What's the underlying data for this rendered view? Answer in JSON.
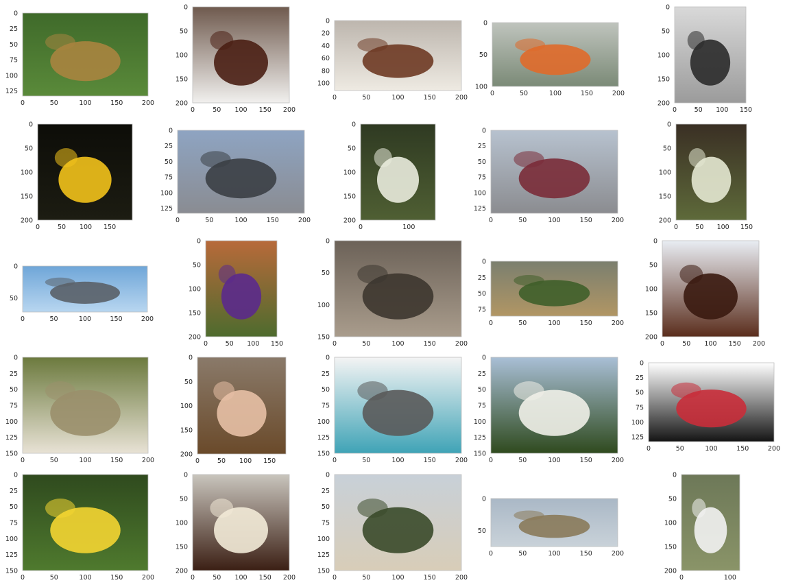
{
  "chart_data": {
    "type": "image-grid",
    "rows": 5,
    "cols": 5,
    "grid": false,
    "panels": [
      {
        "image": "leopard-grass",
        "xlim": [
          0,
          200
        ],
        "ylim": [
          0,
          133
        ],
        "xticks": [
          0,
          50,
          100,
          150,
          200
        ],
        "yticks": [
          0,
          25,
          50,
          75,
          100,
          125
        ]
      },
      {
        "image": "chocolate-cake-slice-coffee",
        "xlim": [
          0,
          200
        ],
        "ylim": [
          0,
          200
        ],
        "xticks": [
          0,
          50,
          100,
          150,
          200
        ],
        "yticks": [
          0,
          50,
          100,
          150,
          200
        ]
      },
      {
        "image": "cheesecake-plate",
        "xlim": [
          0,
          200
        ],
        "ylim": [
          0,
          112
        ],
        "xticks": [
          0,
          50,
          100,
          150,
          200
        ],
        "yticks": [
          0,
          20,
          40,
          60,
          80,
          100
        ]
      },
      {
        "image": "dirt-bike",
        "xlim": [
          0,
          200
        ],
        "ylim": [
          0,
          100
        ],
        "xticks": [
          0,
          50,
          100,
          150,
          200
        ],
        "yticks": [
          0,
          50,
          100
        ]
      },
      {
        "image": "rams-bw",
        "xlim": [
          0,
          150
        ],
        "ylim": [
          0,
          200
        ],
        "xticks": [
          0,
          50,
          100,
          150
        ],
        "yticks": [
          0,
          50,
          100,
          150,
          200
        ]
      },
      {
        "image": "yellow-flower",
        "xlim": [
          0,
          197
        ],
        "ylim": [
          0,
          200
        ],
        "xticks": [
          0,
          50,
          100,
          150
        ],
        "yticks": [
          0,
          50,
          100,
          150,
          200
        ]
      },
      {
        "image": "street-cars",
        "xlim": [
          0,
          200
        ],
        "ylim": [
          0,
          133
        ],
        "xticks": [
          0,
          50,
          100,
          150,
          200
        ],
        "yticks": [
          0,
          25,
          50,
          75,
          100,
          125
        ]
      },
      {
        "image": "white-fritillary",
        "xlim": [
          0,
          155
        ],
        "ylim": [
          0,
          200
        ],
        "xticks": [
          0,
          100
        ],
        "yticks": [
          0,
          50,
          100,
          150,
          200
        ]
      },
      {
        "image": "street-car-rear",
        "xlim": [
          0,
          200
        ],
        "ylim": [
          0,
          133
        ],
        "xticks": [
          0,
          50,
          100,
          150,
          200
        ],
        "yticks": [
          0,
          25,
          50,
          75,
          100,
          125
        ]
      },
      {
        "image": "fritillary-bells",
        "xlim": [
          0,
          150
        ],
        "ylim": [
          0,
          200
        ],
        "xticks": [
          0,
          50,
          100,
          150
        ],
        "yticks": [
          0,
          50,
          100,
          150,
          200
        ]
      },
      {
        "image": "fighter-jet",
        "xlim": [
          0,
          200
        ],
        "ylim": [
          0,
          72
        ],
        "xticks": [
          0,
          50,
          100,
          150,
          200
        ],
        "yticks": [
          0,
          50
        ]
      },
      {
        "image": "purple-iris",
        "xlim": [
          0,
          150
        ],
        "ylim": [
          0,
          200
        ],
        "xticks": [
          0,
          50,
          100,
          150
        ],
        "yticks": [
          0,
          50,
          100,
          150,
          200
        ]
      },
      {
        "image": "ram-closeup",
        "xlim": [
          0,
          200
        ],
        "ylim": [
          0,
          150
        ],
        "xticks": [
          0,
          50,
          100,
          150,
          200
        ],
        "yticks": [
          0,
          50,
          100,
          150
        ]
      },
      {
        "image": "leopard-lying",
        "xlim": [
          0,
          200
        ],
        "ylim": [
          0,
          86
        ],
        "xticks": [
          0,
          50,
          100,
          150,
          200
        ],
        "yticks": [
          0,
          25,
          50,
          75
        ]
      },
      {
        "image": "cake-slab",
        "xlim": [
          0,
          200
        ],
        "ylim": [
          0,
          200
        ],
        "xticks": [
          0,
          50,
          100,
          150,
          200
        ],
        "yticks": [
          0,
          50,
          100,
          150,
          200
        ]
      },
      {
        "image": "sheep-lamb",
        "xlim": [
          0,
          200
        ],
        "ylim": [
          0,
          150
        ],
        "xticks": [
          0,
          50,
          100,
          150,
          200
        ],
        "yticks": [
          0,
          25,
          50,
          75,
          100,
          125,
          150
        ]
      },
      {
        "image": "woman-portrait",
        "xlim": [
          0,
          184
        ],
        "ylim": [
          0,
          200
        ],
        "xticks": [
          0,
          50,
          100,
          150
        ],
        "yticks": [
          0,
          50,
          100,
          150,
          200
        ]
      },
      {
        "image": "blue-motorcycle",
        "xlim": [
          0,
          200
        ],
        "ylim": [
          0,
          150
        ],
        "xticks": [
          0,
          50,
          100,
          150,
          200
        ],
        "yticks": [
          0,
          25,
          50,
          75,
          100,
          125,
          150
        ]
      },
      {
        "image": "white-house",
        "xlim": [
          0,
          200
        ],
        "ylim": [
          0,
          150
        ],
        "xticks": [
          0,
          50,
          100,
          150,
          200
        ],
        "yticks": [
          0,
          25,
          50,
          75,
          100,
          125,
          150
        ]
      },
      {
        "image": "red-motorcycle",
        "xlim": [
          0,
          200
        ],
        "ylim": [
          0,
          133
        ],
        "xticks": [
          0,
          50,
          100,
          150,
          200
        ],
        "yticks": [
          0,
          25,
          50,
          75,
          100,
          125
        ]
      },
      {
        "image": "buttercups",
        "xlim": [
          0,
          200
        ],
        "ylim": [
          0,
          150
        ],
        "xticks": [
          0,
          50,
          100,
          150,
          200
        ],
        "yticks": [
          0,
          25,
          50,
          75,
          100,
          125,
          150
        ]
      },
      {
        "image": "layer-cake",
        "xlim": [
          0,
          200
        ],
        "ylim": [
          0,
          200
        ],
        "xticks": [
          0,
          50,
          100,
          150,
          200
        ],
        "yticks": [
          0,
          50,
          100,
          150,
          200
        ]
      },
      {
        "image": "modern-building",
        "xlim": [
          0,
          200
        ],
        "ylim": [
          0,
          150
        ],
        "xticks": [
          0,
          50,
          100,
          150,
          200
        ],
        "yticks": [
          0,
          25,
          50,
          75,
          100,
          125,
          150
        ]
      },
      {
        "image": "airliner",
        "xlim": [
          0,
          200
        ],
        "ylim": [
          0,
          75
        ],
        "xticks": [
          0,
          50,
          100,
          150,
          200
        ],
        "yticks": [
          0,
          50
        ]
      },
      {
        "image": "black-faced-lamb",
        "xlim": [
          0,
          120
        ],
        "ylim": [
          0,
          200
        ],
        "xticks": [
          0,
          100
        ],
        "yticks": [
          0,
          50,
          100,
          150,
          200
        ]
      }
    ]
  }
}
